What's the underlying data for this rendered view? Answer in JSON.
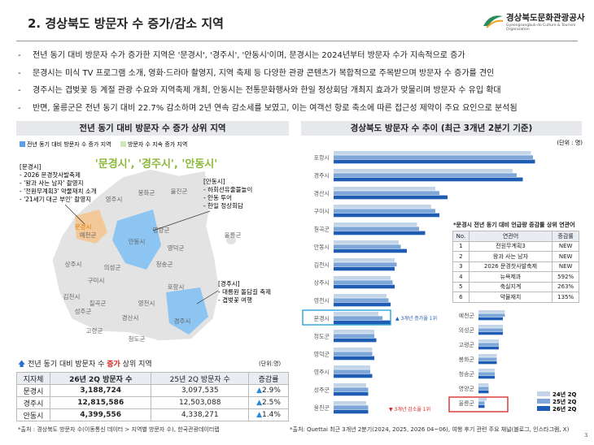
{
  "header": {
    "title": "2. 경상북도 방문자 수 증가/감소 지역",
    "logo_name": "경상북도문화관광공사",
    "logo_sub": "Gyeongsangbuk-do Culture & Tourism Organization"
  },
  "bullets": [
    "전년 동기 대비 방문자 수가 증가한 지역은 '문경시', '경주시', '안동시'이며, 문경시는 2024년부터 방문자 수가 지속적으로 증가",
    "문경시는 미식 TV 프로그램 소개, 영화·드라마 촬영지, 지역 축제 등 다양한 관광 콘텐츠가 복합적으로 주목받으며 방문자 수 증가를 견인",
    "경주시는 겹벚꽃 등 계절 관광 수요와 지역축제 개최, 안동시는 전통문화행사와 한일 정상회담 개최지 효과가 맞물리며 방문자 수 유입 확대",
    "반면, 울릉군은 전년 동기 대비 22.7% 감소하며 2년 연속 감소세를 보였고, 이는 여객선 항로 축소에 따른 접근성 제약이 주요 요인으로 분석됨"
  ],
  "left_panel": {
    "heading": "전년 동기 대비 방문자 수 증가 상위 지역",
    "legend": [
      "전년 동기 대비 방문자 수 증가 지역",
      "방문자 수 지속 증가 지역"
    ],
    "highlight": "'문경시', '경주시', '안동시'",
    "map_labels": [
      "영주시",
      "봉화군",
      "울진군",
      "문경시",
      "예천군",
      "안동시",
      "영양군",
      "영덕군",
      "울릉군",
      "상주시",
      "의성군",
      "청송군",
      "구미시",
      "김천시",
      "칠곡군",
      "포항시",
      "성주군",
      "고령군",
      "영천시",
      "경산시",
      "청도군",
      "경주시"
    ],
    "callouts": [
      {
        "title": "[문경시]",
        "items": [
          "- 2026 문경찻사발축제",
          "- '왕과 사는 남자' 촬영지",
          "- '전원무계획3' 약물재치 소개",
          "- '21세기 대군 부인' 촬영지"
        ]
      },
      {
        "title": "[안동시]",
        "items": [
          "- 하회선유줄불놀이",
          "- 안동 투어",
          "- 한일 정상회담"
        ]
      },
      {
        "title": "[경주시]",
        "items": [
          "- 대릉원 돌담길 축제",
          "- 겹벚꽃 여행"
        ]
      }
    ],
    "table": {
      "caption_pre": "전년 동기 대비 방문자 수 ",
      "caption_red": "증가",
      "caption_post": " 상위 지역",
      "unit": "(단위:명)",
      "header": [
        "지자체",
        "26년 2Q 방문자 수",
        "25년 2Q 방문자 수",
        "증감률"
      ],
      "rows": [
        [
          "문경시",
          "3,188,724",
          "3,097,535",
          "2.9%"
        ],
        [
          "경주시",
          "12,815,586",
          "12,503,088",
          "2.5%"
        ],
        [
          "안동시",
          "4,399,556",
          "4,338,271",
          "1.4%"
        ]
      ]
    },
    "source": "*출처 : 경상북도 방문자 수(이동통신 데이터 > 지역별 방문자 수), 한국관광데이터랩"
  },
  "right_panel": {
    "heading": "경상북도 방문자 수 추이 (최근 3개년 2분기 기준)",
    "keyword_table": {
      "title": "*문경시 전년 동기 대비 언급량 증감률 상위 연관어",
      "header": [
        "No.",
        "연관어",
        "증감률"
      ],
      "rows": [
        [
          "1",
          "전원무계획3",
          "NEW"
        ],
        [
          "2",
          "왕과 사는 남자",
          "NEW"
        ],
        [
          "3",
          "2026 문경찻사발축제",
          "NEW"
        ],
        [
          "4",
          "뉴욕제과",
          "592%"
        ],
        [
          "5",
          "축실지계",
          "263%"
        ],
        [
          "6",
          "약물재치",
          "135%"
        ]
      ]
    },
    "source": "*출처: Quettai 최근 3개년 2분기(2024, 2025, 2026 04~06), 여행 후기 관련 주요 채널(블로그, 인스타그램, X)"
  },
  "chart_data": {
    "type": "bar",
    "orientation": "horizontal",
    "unit": "(단위 : 명)",
    "xlim": [
      0,
      100
    ],
    "categories": [
      "포항시",
      "경주시",
      "경산시",
      "구미시",
      "칠곡군",
      "안동시",
      "김천시",
      "상주시",
      "영천시",
      "문경시",
      "청도군",
      "영덕군",
      "영주시",
      "성주군",
      "울진군",
      "예천군",
      "의성군",
      "고령군",
      "봉화군",
      "청송군",
      "영양군",
      "울릉군"
    ],
    "series": [
      {
        "name": "24년 2Q",
        "color": "#c4d5ea",
        "values": [
          97,
          88,
          50,
          48,
          41,
          32,
          30,
          28,
          26,
          22,
          20,
          19,
          18,
          16,
          16,
          13,
          12,
          10,
          9,
          8,
          5,
          4
        ]
      },
      {
        "name": "25년 2Q",
        "color": "#7ea7d8",
        "values": [
          98,
          90,
          52,
          50,
          42,
          33,
          31,
          29,
          27,
          24,
          20,
          19,
          18,
          17,
          17,
          13,
          12,
          10,
          9,
          8,
          5,
          3
        ]
      },
      {
        "name": "26년 2Q",
        "color": "#1f5db5",
        "values": [
          99,
          93,
          56,
          52,
          45,
          36,
          30,
          30,
          28,
          28,
          21,
          20,
          19,
          17,
          17,
          12,
          12,
          10,
          9,
          8,
          5,
          3
        ]
      }
    ],
    "annotations": [
      "▲ 3개년 증가율 1위",
      "▼ 3개년 감소율 1위"
    ]
  },
  "page_number": "3"
}
